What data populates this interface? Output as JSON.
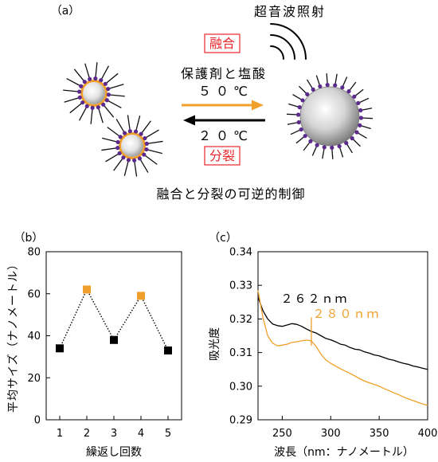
{
  "figure": {
    "panel_a": {
      "label": "（a）",
      "ultrasound": "超音波照射",
      "fusion_label": "融合",
      "reagents": "保護剤と塩酸",
      "forward_temperature": "５０℃",
      "reverse_temperature": "２０℃",
      "fission_label": "分裂",
      "caption": "融合と分裂の可逆的制御"
    },
    "panel_b": {
      "label": "（b）"
    },
    "panel_c": {
      "label": "（c）"
    }
  },
  "icons": {
    "ultrasound": "sound-wave-icon",
    "forward_arrow": "arrow-right-icon",
    "reverse_arrow": "arrow-left-icon"
  },
  "colors": {
    "accent_orange": "#F0A02A",
    "label_red": "#E8262A",
    "ligand_purple": "#5B2A8C",
    "line_black": "#000000"
  },
  "chart_data": [
    {
      "type": "scatter",
      "x": [
        1,
        2,
        3,
        4,
        5
      ],
      "values": [
        34,
        62,
        38,
        59,
        33
      ],
      "point_colors": [
        "#000000",
        "#F0A02A",
        "#000000",
        "#F0A02A",
        "#000000"
      ],
      "marker": "square",
      "connector": "dotted",
      "xlabel": "繰返し回数",
      "ylabel": "平均サイズ（ナノメートル）",
      "xlim": [
        0.5,
        5.5
      ],
      "ylim": [
        0,
        80
      ],
      "xticks": [
        1,
        2,
        3,
        4,
        5
      ],
      "yticks": [
        0,
        20,
        40,
        60,
        80
      ],
      "grid": false
    },
    {
      "type": "line",
      "xlabel": "波長（nm：ナノメートル）",
      "ylabel": "吸光度",
      "xlim": [
        225,
        400
      ],
      "ylim": [
        0.29,
        0.34
      ],
      "xticks": [
        250,
        300,
        350,
        400
      ],
      "yticks": [
        "0.29",
        "0.30",
        "0.31",
        "0.32",
        "0.33",
        "0.34"
      ],
      "grid": false,
      "x": [
        225,
        230,
        235,
        240,
        245,
        250,
        255,
        260,
        265,
        270,
        275,
        280,
        285,
        290,
        295,
        300,
        305,
        310,
        315,
        320,
        325,
        330,
        335,
        340,
        345,
        350,
        355,
        360,
        365,
        370,
        375,
        380,
        385,
        390,
        395,
        400
      ],
      "series": [
        {
          "color": "#000000",
          "values": [
            0.3265,
            0.3225,
            0.32,
            0.3185,
            0.318,
            0.3178,
            0.3182,
            0.3186,
            0.3184,
            0.3178,
            0.317,
            0.3163,
            0.3158,
            0.315,
            0.3142,
            0.3138,
            0.3132,
            0.3125,
            0.3122,
            0.3115,
            0.311,
            0.3108,
            0.3102,
            0.3098,
            0.3093,
            0.309,
            0.3085,
            0.308,
            0.3077,
            0.3072,
            0.3068,
            0.3065,
            0.306,
            0.3057,
            0.3053,
            0.305
          ]
        },
        {
          "color": "#F0A02A",
          "values": [
            0.3285,
            0.3205,
            0.315,
            0.3128,
            0.312,
            0.3122,
            0.3125,
            0.313,
            0.3132,
            0.3135,
            0.3137,
            0.3135,
            0.3118,
            0.3095,
            0.3078,
            0.3068,
            0.306,
            0.3052,
            0.3045,
            0.3038,
            0.303,
            0.3022,
            0.3015,
            0.301,
            0.3005,
            0.3,
            0.2993,
            0.2987,
            0.298,
            0.2975,
            0.2968,
            0.2962,
            0.2957,
            0.2952,
            0.2947,
            0.2943
          ]
        }
      ],
      "annotations": [
        {
          "text": "２６２ｎｍ",
          "x": 262,
          "color": "#000000"
        },
        {
          "text": "２８０ｎｍ",
          "x": 280,
          "color": "#F0A02A",
          "marker_y": [
            0.312,
            0.3205
          ]
        }
      ]
    }
  ]
}
